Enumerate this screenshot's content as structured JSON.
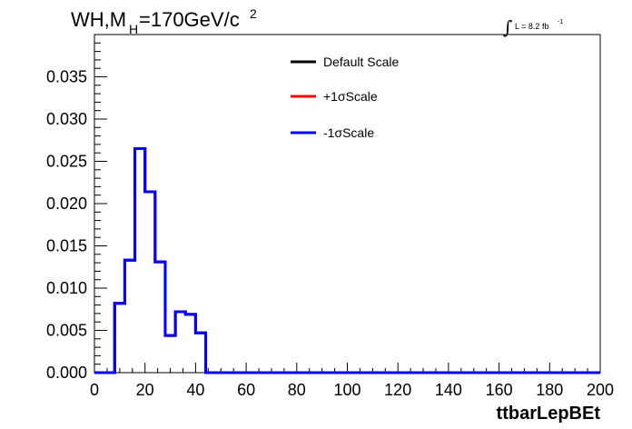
{
  "chart_data": {
    "type": "line",
    "title": {
      "main": "WH,M",
      "sub": "H",
      "rest": "=170GeV/c",
      "sup": "2"
    },
    "lumi": {
      "integral": "∫",
      "text": "L = 8.2 fb",
      "sup": "-1"
    },
    "xlabel": "ttbarLepBEt",
    "ylabel": "",
    "xlim": [
      0,
      200
    ],
    "ylim": [
      0,
      0.04
    ],
    "xticks": [
      "0",
      "20",
      "40",
      "60",
      "80",
      "100",
      "120",
      "140",
      "160",
      "180",
      "200"
    ],
    "yticks": [
      "0.000",
      "0.005",
      "0.010",
      "0.015",
      "0.020",
      "0.025",
      "0.030",
      "0.035"
    ],
    "bin_width": 4,
    "bin_edges": [
      0,
      4,
      8,
      12,
      16,
      20,
      24,
      28,
      32,
      36,
      40,
      44,
      48
    ],
    "series": [
      {
        "name": "Default Scale",
        "color": "#000000",
        "values": [
          0,
          0,
          0.0082,
          0.0133,
          0.0265,
          0.0214,
          0.0131,
          0.0044,
          0.0072,
          0.0069,
          0.0047,
          0,
          0
        ]
      },
      {
        "name": "+1σScale",
        "color": "#ff0000",
        "values": [
          0,
          0,
          0.0082,
          0.0133,
          0.0265,
          0.0214,
          0.0131,
          0.0044,
          0.0072,
          0.0069,
          0.0047,
          0,
          0
        ]
      },
      {
        "name": "-1σScale",
        "color": "#0000ff",
        "values": [
          0,
          0,
          0.0082,
          0.0133,
          0.0265,
          0.0214,
          0.0131,
          0.0044,
          0.0072,
          0.0069,
          0.0047,
          0,
          0
        ]
      }
    ],
    "legend_position": "top-center"
  }
}
